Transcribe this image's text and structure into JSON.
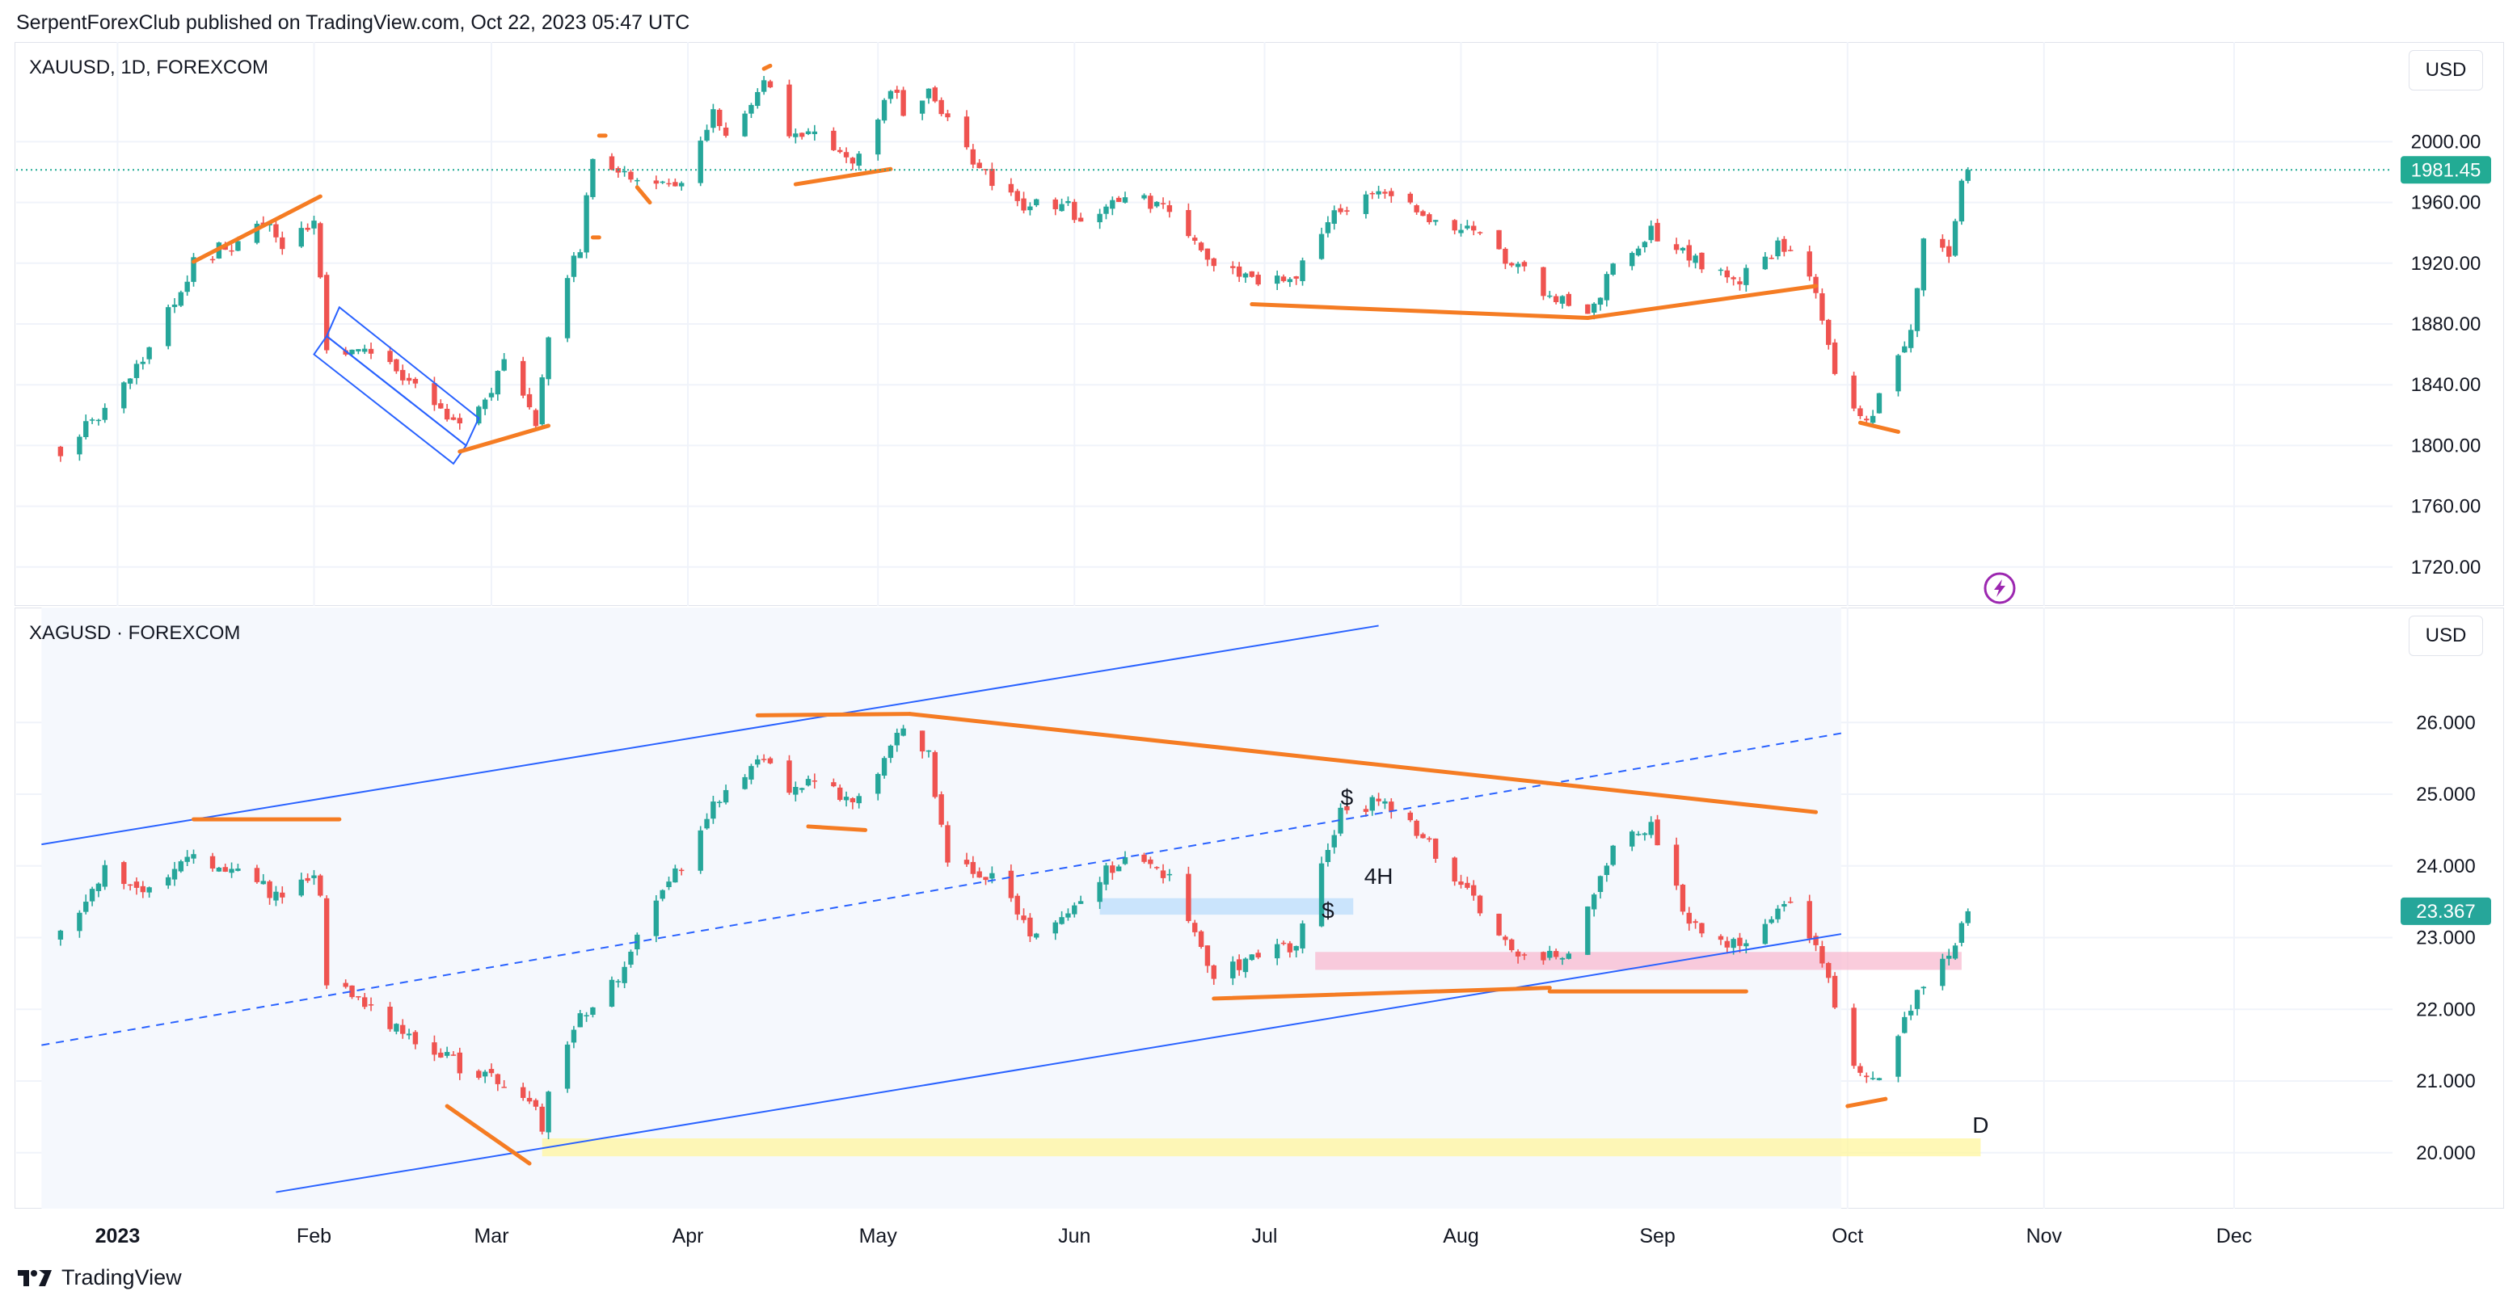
{
  "header": {
    "text": "SerpentForexClub published on TradingView.com, Oct 22, 2023 05:47 UTC"
  },
  "footer": {
    "brand": "TradingView"
  },
  "colors": {
    "up": "#26a69a",
    "down": "#ef5350",
    "annotation_orange": "#f57c23",
    "channel_blue": "#2962ff",
    "price_line": "#22ab94",
    "silver_price_bg": "#26a69a",
    "zone_yellow": "#fff59d",
    "zone_pink": "#f8bbd0",
    "zone_blue": "#bbdefb",
    "alert_purple": "#9c27b0"
  },
  "chart_data": [
    {
      "type": "candlestick",
      "symbol": "XAUUSD, 1D, FOREXCOM",
      "currency_label": "USD",
      "price_ticks": [
        "2000.00",
        "1960.00",
        "1920.00",
        "1880.00",
        "1840.00",
        "1800.00",
        "1760.00",
        "1720.00"
      ],
      "ylim": [
        1705,
        2055
      ],
      "last_price": "1981.45",
      "icons": [
        "lightning-alert-icon"
      ],
      "anchors": [
        [
          "2022-12-23",
          1798
        ],
        [
          "2022-12-30",
          1824
        ],
        [
          "2023-01-06",
          1866
        ],
        [
          "2023-01-13",
          1920
        ],
        [
          "2023-01-25",
          1946
        ],
        [
          "2023-01-27",
          1928
        ],
        [
          "2023-02-01",
          1950
        ],
        [
          "2023-02-02",
          1912
        ],
        [
          "2023-02-03",
          1865
        ],
        [
          "2023-02-10",
          1862
        ],
        [
          "2023-02-17",
          1842
        ],
        [
          "2023-02-24",
          1810
        ],
        [
          "2023-02-28",
          1827
        ],
        [
          "2023-03-03",
          1855
        ],
        [
          "2023-03-08",
          1814
        ],
        [
          "2023-03-10",
          1868
        ],
        [
          "2023-03-13",
          1913
        ],
        [
          "2023-03-15",
          1932
        ],
        [
          "2023-03-17",
          1990
        ],
        [
          "2023-03-20",
          1978
        ],
        [
          "2023-03-24",
          1975
        ],
        [
          "2023-03-28",
          1972
        ],
        [
          "2023-03-31",
          1970
        ],
        [
          "2023-04-05",
          2020
        ],
        [
          "2023-04-07",
          2006
        ],
        [
          "2023-04-13",
          2040
        ],
        [
          "2023-04-17",
          2004
        ],
        [
          "2023-04-20",
          2005
        ],
        [
          "2023-04-26",
          1990
        ],
        [
          "2023-04-28",
          1990
        ],
        [
          "2023-05-03",
          2038
        ],
        [
          "2023-05-05",
          2019
        ],
        [
          "2023-05-09",
          2035
        ],
        [
          "2023-05-12",
          2012
        ],
        [
          "2023-05-17",
          1982
        ],
        [
          "2023-05-24",
          1958
        ],
        [
          "2023-05-30",
          1960
        ],
        [
          "2023-06-02",
          1948
        ],
        [
          "2023-06-09",
          1962
        ],
        [
          "2023-06-16",
          1958
        ],
        [
          "2023-06-23",
          1920
        ],
        [
          "2023-06-29",
          1908
        ],
        [
          "2023-07-06",
          1912
        ],
        [
          "2023-07-12",
          1958
        ],
        [
          "2023-07-14",
          1955
        ],
        [
          "2023-07-20",
          1970
        ],
        [
          "2023-07-27",
          1945
        ],
        [
          "2023-08-01",
          1945
        ],
        [
          "2023-08-08",
          1923
        ],
        [
          "2023-08-15",
          1900
        ],
        [
          "2023-08-21",
          1889
        ],
        [
          "2023-08-25",
          1915
        ],
        [
          "2023-08-31",
          1940
        ],
        [
          "2023-09-05",
          1926
        ],
        [
          "2023-09-08",
          1918
        ],
        [
          "2023-09-14",
          1910
        ],
        [
          "2023-09-20",
          1930
        ],
        [
          "2023-09-22",
          1925
        ],
        [
          "2023-09-26",
          1902
        ],
        [
          "2023-09-29",
          1848
        ],
        [
          "2023-10-03",
          1822
        ],
        [
          "2023-10-05",
          1820
        ],
        [
          "2023-10-06",
          1833
        ],
        [
          "2023-10-09",
          1861
        ],
        [
          "2023-10-11",
          1874
        ],
        [
          "2023-10-13",
          1932
        ],
        [
          "2023-10-17",
          1923
        ],
        [
          "2023-10-19",
          1973
        ],
        [
          "2023-10-20",
          1981.45
        ]
      ]
    },
    {
      "type": "candlestick",
      "symbol": "XAGUSD · FOREXCOM",
      "currency_label": "USD",
      "price_ticks": [
        "26.000",
        "25.000",
        "24.000",
        "23.000",
        "22.000",
        "21.000",
        "20.000"
      ],
      "ylim": [
        19.4,
        27.4
      ],
      "last_price": "23.367",
      "annotations": [
        "$",
        "$",
        "4H",
        "D"
      ],
      "anchors": [
        [
          "2022-12-23",
          23.0
        ],
        [
          "2022-12-30",
          23.9
        ],
        [
          "2023-01-06",
          23.7
        ],
        [
          "2023-01-13",
          24.2
        ],
        [
          "2023-01-20",
          23.9
        ],
        [
          "2023-01-26",
          23.6
        ],
        [
          "2023-02-01",
          23.8
        ],
        [
          "2023-02-02",
          23.5
        ],
        [
          "2023-02-03",
          22.4
        ],
        [
          "2023-02-10",
          22.0
        ],
        [
          "2023-02-17",
          21.6
        ],
        [
          "2023-02-24",
          21.2
        ],
        [
          "2023-03-01",
          21.0
        ],
        [
          "2023-03-07",
          20.8
        ],
        [
          "2023-03-09",
          20.3
        ],
        [
          "2023-03-10",
          20.9
        ],
        [
          "2023-03-14",
          21.8
        ],
        [
          "2023-03-20",
          22.3
        ],
        [
          "2023-03-24",
          23.1
        ],
        [
          "2023-03-31",
          24.0
        ],
        [
          "2023-04-05",
          24.9
        ],
        [
          "2023-04-13",
          25.6
        ],
        [
          "2023-04-17",
          25.1
        ],
        [
          "2023-04-21",
          25.1
        ],
        [
          "2023-04-28",
          24.9
        ],
        [
          "2023-05-05",
          25.9
        ],
        [
          "2023-05-09",
          25.5
        ],
        [
          "2023-05-12",
          24.0
        ],
        [
          "2023-05-19",
          23.8
        ],
        [
          "2023-05-26",
          23.0
        ],
        [
          "2023-06-02",
          23.5
        ],
        [
          "2023-06-09",
          24.2
        ],
        [
          "2023-06-16",
          23.9
        ],
        [
          "2023-06-23",
          22.4
        ],
        [
          "2023-06-30",
          22.8
        ],
        [
          "2023-07-06",
          22.9
        ],
        [
          "2023-07-13",
          24.8
        ],
        [
          "2023-07-20",
          24.9
        ],
        [
          "2023-07-27",
          24.3
        ],
        [
          "2023-08-03",
          23.5
        ],
        [
          "2023-08-11",
          22.7
        ],
        [
          "2023-08-18",
          22.7
        ],
        [
          "2023-08-25",
          24.2
        ],
        [
          "2023-08-31",
          24.6
        ],
        [
          "2023-09-06",
          23.2
        ],
        [
          "2023-09-13",
          22.9
        ],
        [
          "2023-09-19",
          23.3
        ],
        [
          "2023-09-22",
          23.6
        ],
        [
          "2023-09-27",
          22.6
        ],
        [
          "2023-09-29",
          22.1
        ],
        [
          "2023-10-03",
          21.0
        ],
        [
          "2023-10-06",
          21.0
        ],
        [
          "2023-10-10",
          21.9
        ],
        [
          "2023-10-13",
          22.3
        ],
        [
          "2023-10-17",
          22.7
        ],
        [
          "2023-10-19",
          23.3
        ],
        [
          "2023-10-20",
          23.367
        ]
      ]
    }
  ],
  "time_axis": {
    "labels": [
      "2023",
      "Feb",
      "Mar",
      "Apr",
      "May",
      "Jun",
      "Jul",
      "Aug",
      "Sep",
      "Oct",
      "Nov",
      "Dec"
    ],
    "dates": [
      "2023-01-01",
      "2023-02-01",
      "2023-03-01",
      "2023-04-01",
      "2023-05-01",
      "2023-06-01",
      "2023-07-01",
      "2023-08-01",
      "2023-09-01",
      "2023-10-01",
      "2023-11-01",
      "2023-12-01"
    ]
  },
  "drawings": {
    "gold": {
      "lines": [
        [
          [
            "2023-01-13",
            1921
          ],
          [
            "2023-02-02",
            1964
          ]
        ],
        [
          [
            "2023-02-24",
            1796
          ],
          [
            "2023-03-10",
            1813
          ]
        ],
        [
          [
            "2023-03-17",
            1937
          ],
          [
            "2023-03-18",
            1937
          ]
        ],
        [
          [
            "2023-03-18",
            2004
          ],
          [
            "2023-03-19",
            2004
          ]
        ],
        [
          [
            "2023-03-24",
            1970
          ],
          [
            "2023-03-26",
            1960
          ]
        ],
        [
          [
            "2023-04-13",
            2048
          ],
          [
            "2023-04-14",
            2050
          ]
        ],
        [
          [
            "2023-04-18",
            1972
          ],
          [
            "2023-05-03",
            1982
          ]
        ],
        [
          [
            "2023-06-29",
            1893
          ],
          [
            "2023-08-21",
            1884
          ]
        ],
        [
          [
            "2023-08-21",
            1884
          ],
          [
            "2023-09-26",
            1905
          ]
        ],
        [
          [
            "2023-10-03",
            1815
          ],
          [
            "2023-10-09",
            1809
          ]
        ]
      ],
      "channel": [
        [
          [
            "2023-02-01",
            1860
          ],
          [
            "2023-02-03",
            1872
          ],
          [
            "2023-02-25",
            1800
          ],
          [
            "2023-02-23",
            1788
          ]
        ],
        [
          [
            "2023-02-03",
            1872
          ],
          [
            "2023-02-05",
            1891
          ],
          [
            "2023-02-27",
            1818
          ],
          [
            "2023-02-25",
            1800
          ]
        ]
      ]
    },
    "silver": {
      "orange_lines": [
        [
          [
            "2023-01-13",
            24.65
          ],
          [
            "2023-02-05",
            24.65
          ]
        ],
        [
          [
            "2023-02-22",
            20.65
          ],
          [
            "2023-03-07",
            19.85
          ]
        ],
        [
          [
            "2023-04-12",
            26.1
          ],
          [
            "2023-05-06",
            26.12
          ]
        ],
        [
          [
            "2023-05-06",
            26.12
          ],
          [
            "2023-09-26",
            24.75
          ]
        ],
        [
          [
            "2023-04-20",
            24.55
          ],
          [
            "2023-04-29",
            24.5
          ]
        ],
        [
          [
            "2023-06-23",
            22.15
          ],
          [
            "2023-08-15",
            22.3
          ]
        ],
        [
          [
            "2023-08-15",
            22.25
          ],
          [
            "2023-09-15",
            22.25
          ]
        ],
        [
          [
            "2023-10-01",
            20.65
          ],
          [
            "2023-10-07",
            20.75
          ]
        ]
      ],
      "channel_upper": [
        [
          "2022-12-20",
          24.3
        ],
        [
          "2023-07-19",
          27.35
        ]
      ],
      "channel_mid": [
        [
          "2022-12-20",
          21.5
        ],
        [
          "2023-09-30",
          25.85
        ]
      ],
      "channel_lower": [
        [
          "2023-01-26",
          19.45
        ],
        [
          "2023-09-30",
          23.05
        ]
      ],
      "zones": [
        {
          "color": "yellow",
          "from": "2023-03-09",
          "to": "2023-10-22",
          "high": 20.2,
          "low": 19.95
        },
        {
          "color": "pink",
          "from": "2023-07-09",
          "to": "2023-10-19",
          "high": 22.8,
          "low": 22.55
        },
        {
          "color": "blue",
          "from": "2023-06-05",
          "to": "2023-07-15",
          "high": 23.55,
          "low": 23.32
        }
      ],
      "shade": {
        "from": "2022-12-20",
        "to": "2023-09-30"
      }
    }
  }
}
